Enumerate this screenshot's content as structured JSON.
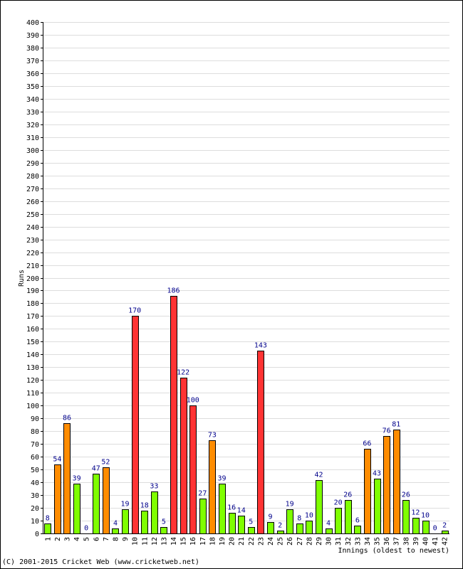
{
  "chart_data": {
    "type": "bar",
    "xlabel": "Innings (oldest to newest)",
    "ylabel": "Runs",
    "ylim": [
      0,
      400
    ],
    "ytick_step": 10,
    "grid": true,
    "categories": [
      "1",
      "2",
      "3",
      "4",
      "5",
      "6",
      "7",
      "8",
      "9",
      "10",
      "11",
      "12",
      "13",
      "14",
      "15",
      "16",
      "17",
      "18",
      "19",
      "20",
      "21",
      "22",
      "23",
      "24",
      "25",
      "26",
      "27",
      "28",
      "29",
      "30",
      "31",
      "32",
      "33",
      "34",
      "35",
      "36",
      "37",
      "38",
      "39",
      "40",
      "41",
      "42"
    ],
    "values": [
      8,
      54,
      86,
      39,
      0,
      47,
      52,
      4,
      19,
      170,
      18,
      33,
      5,
      186,
      122,
      100,
      27,
      73,
      39,
      16,
      14,
      5,
      143,
      9,
      2,
      19,
      8,
      10,
      42,
      4,
      20,
      26,
      6,
      66,
      43,
      76,
      81,
      26,
      12,
      10,
      0,
      2
    ],
    "colors": {
      "under_50": "#7fff00",
      "fifty": "#ff8c00",
      "hundred": "#ff3333"
    }
  },
  "footer": {
    "copyright": "(C) 2001-2015 Cricket Web (www.cricketweb.net)"
  }
}
